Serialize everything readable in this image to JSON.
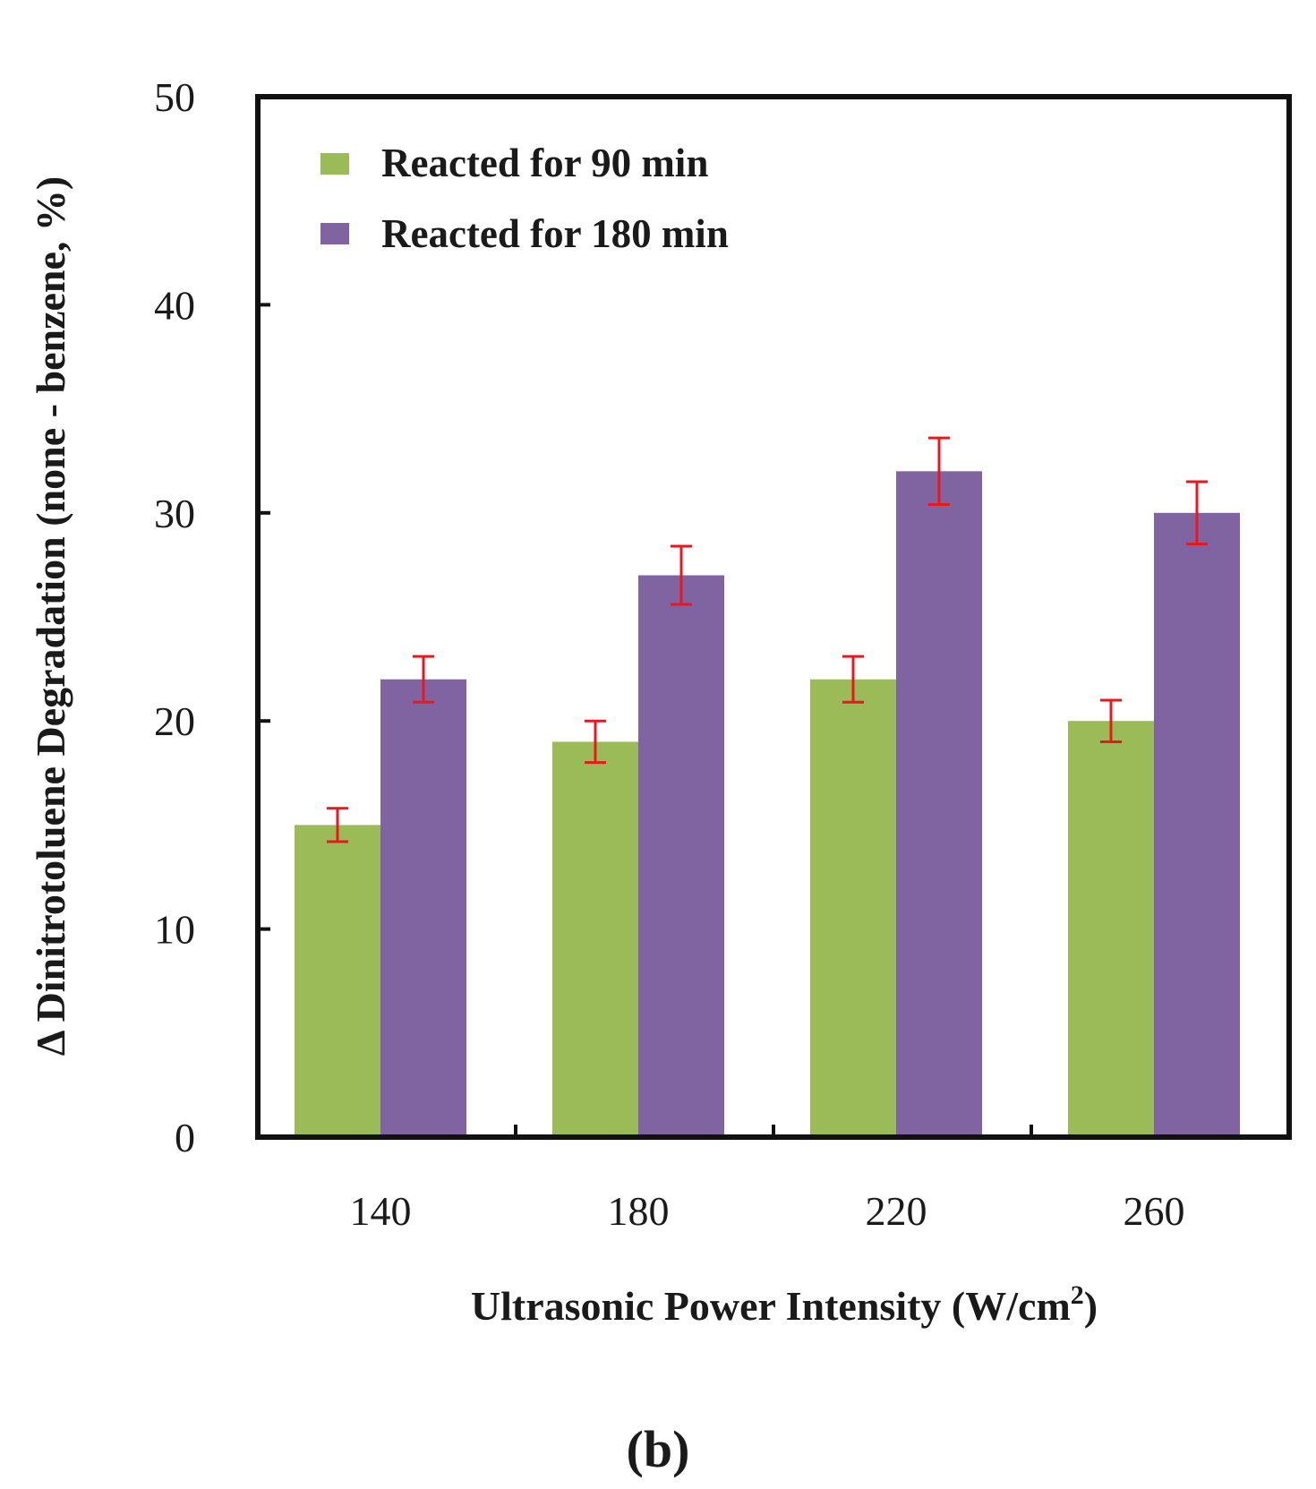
{
  "chart_data": {
    "type": "bar",
    "categories": [
      "140",
      "180",
      "220",
      "260"
    ],
    "series": [
      {
        "name": "Reacted for 90 min",
        "values": [
          15,
          19,
          22,
          20
        ],
        "errors": [
          0.8,
          1.0,
          1.1,
          1.0
        ],
        "color": "#9bbb59"
      },
      {
        "name": "Reacted for 180 min",
        "values": [
          22,
          27,
          32,
          30
        ],
        "errors": [
          1.1,
          1.4,
          1.6,
          1.5
        ],
        "color": "#8064a2"
      }
    ],
    "error_bar_color": "#e8191e",
    "xlabel": "Ultrasonic Power Intensity (W/cm",
    "xlabel_superscript": "2",
    "xlabel_suffix": ")",
    "ylabel": "Δ Dinitrotoluene Degradation (none - benzene, %)",
    "ylim": [
      0,
      50
    ],
    "yticks": [
      0,
      10,
      20,
      30,
      40,
      50
    ],
    "grid": false,
    "legend_position": "top-left",
    "panel_label": "(b)"
  }
}
